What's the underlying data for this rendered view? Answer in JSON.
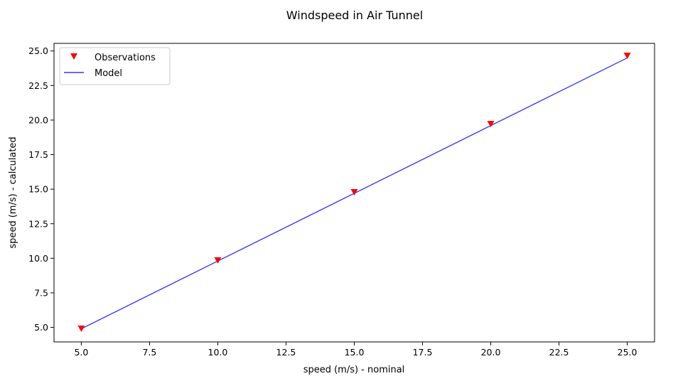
{
  "chart_data": {
    "type": "line",
    "title": "Windspeed in Air Tunnel",
    "xlabel": "speed (m/s) - nominal",
    "ylabel": "speed (m/s) - calculated",
    "xlim": [
      4.0,
      26.0
    ],
    "ylim": [
      3.95,
      25.55
    ],
    "xticks": [
      5.0,
      7.5,
      10.0,
      12.5,
      15.0,
      17.5,
      20.0,
      22.5,
      25.0
    ],
    "xtick_labels": [
      "5.0",
      "7.5",
      "10.0",
      "12.5",
      "15.0",
      "17.5",
      "20.0",
      "22.5",
      "25.0"
    ],
    "yticks": [
      5.0,
      7.5,
      10.0,
      12.5,
      15.0,
      17.5,
      20.0,
      22.5,
      25.0
    ],
    "ytick_labels": [
      "5.0",
      "7.5",
      "10.0",
      "12.5",
      "15.0",
      "17.5",
      "20.0",
      "22.5",
      "25.0"
    ],
    "grid": false,
    "legend_position": "top-left",
    "series": [
      {
        "name": "Observations",
        "kind": "scatter",
        "marker": "triangle-down",
        "color": "#ff0000",
        "x": [
          5,
          10,
          15,
          20,
          25
        ],
        "y": [
          4.93,
          9.87,
          14.8,
          19.73,
          24.67
        ]
      },
      {
        "name": "Model",
        "kind": "line",
        "color": "#3333ff",
        "x": [
          5,
          25
        ],
        "y": [
          4.9,
          24.5
        ]
      }
    ]
  }
}
